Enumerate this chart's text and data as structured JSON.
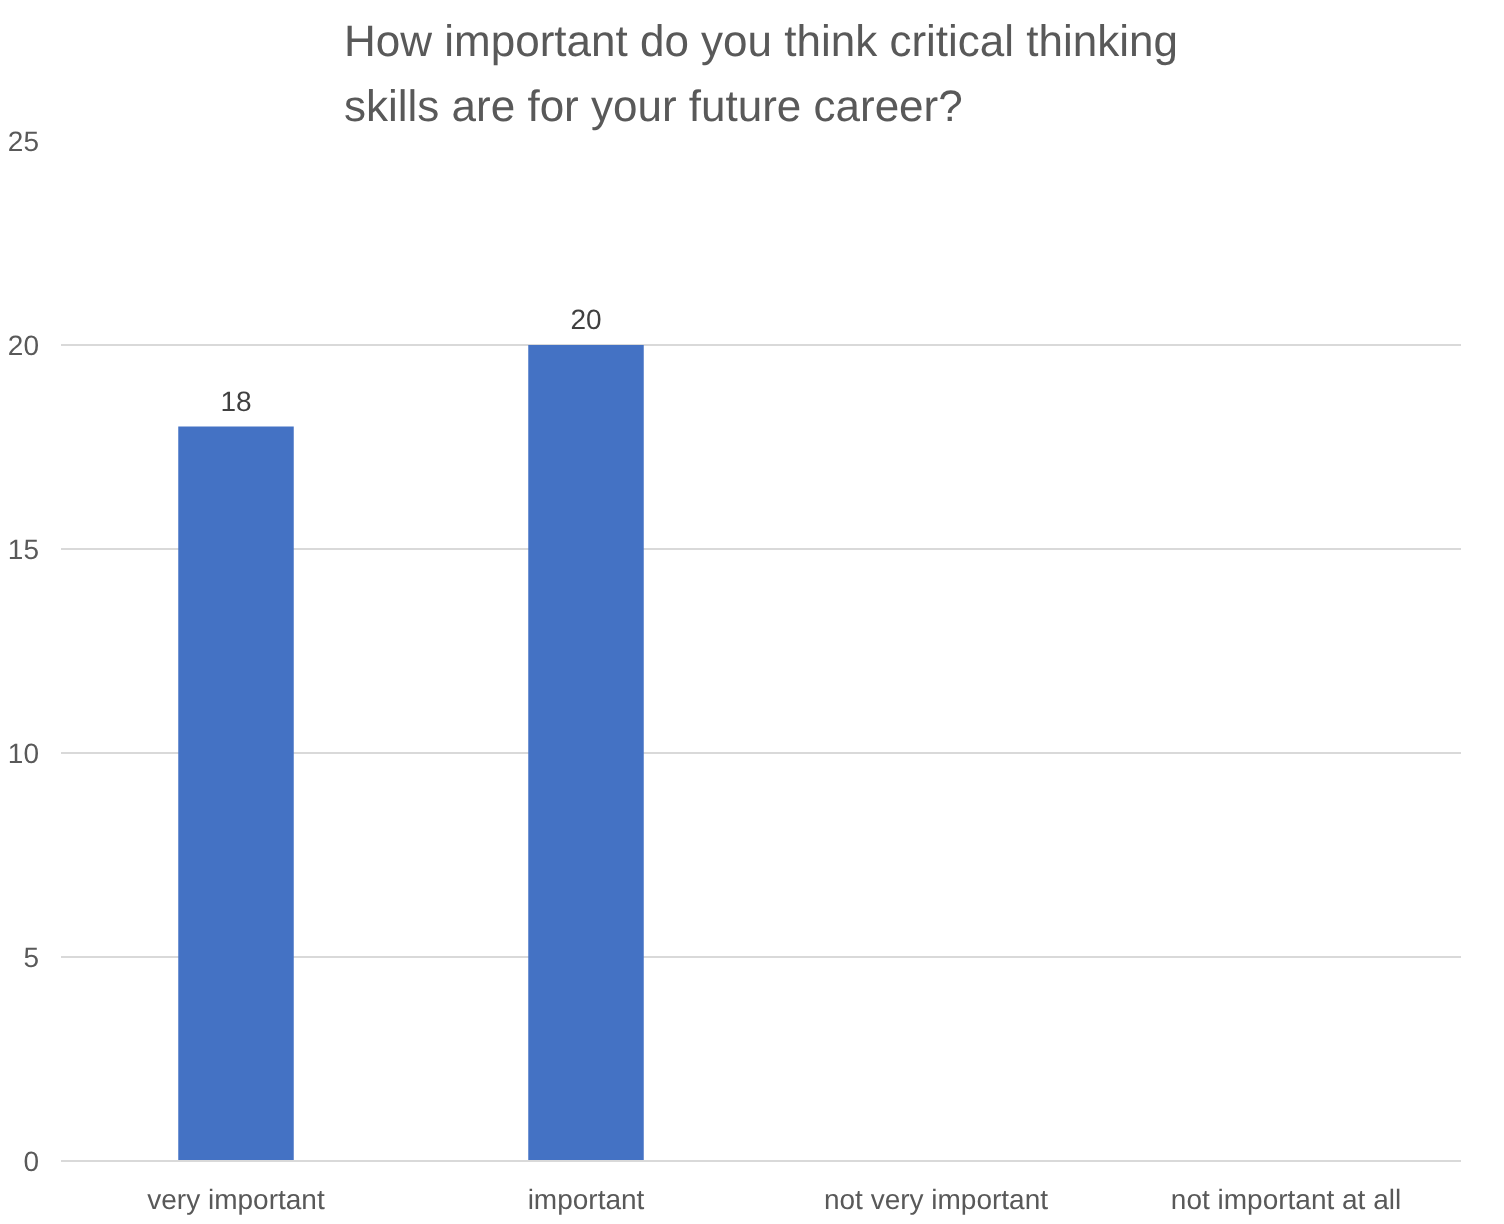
{
  "chart_data": {
    "type": "bar",
    "title": "How important do you think critical thinking skills are for your future career?",
    "categories": [
      "very important",
      "important",
      "not very important",
      "not important at all"
    ],
    "values": [
      18,
      20,
      null,
      null
    ],
    "value_labels": [
      "18",
      "20",
      null,
      null
    ],
    "color": "#4472c4",
    "ylim": [
      0,
      25
    ],
    "yticks": [
      0,
      5,
      10,
      15,
      20,
      25
    ],
    "grid": "y"
  }
}
